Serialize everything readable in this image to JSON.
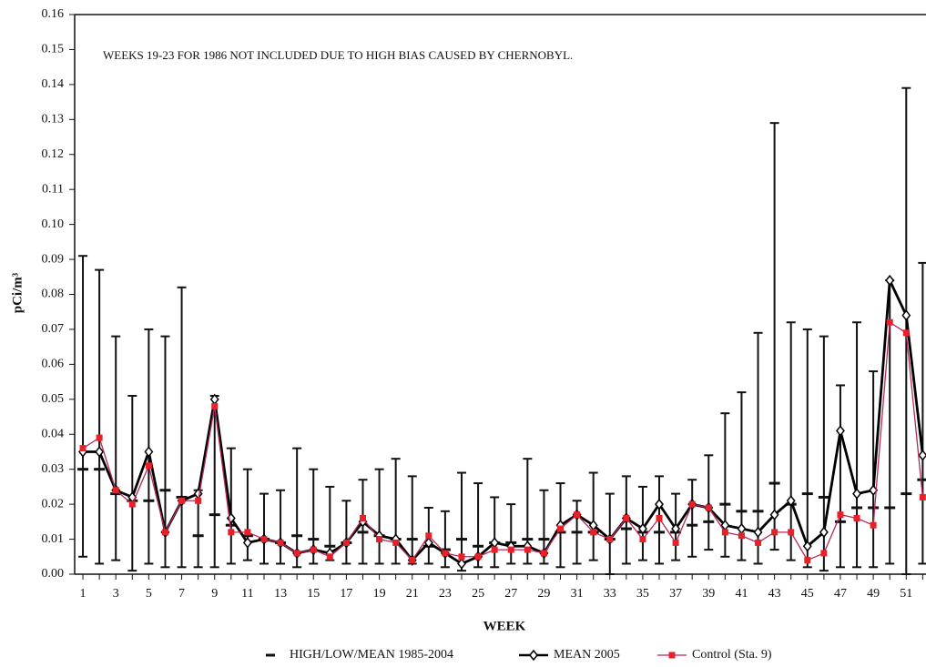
{
  "chart_data": {
    "type": "line",
    "annotation": "WEEKS 19-23 FOR 1986 NOT INCLUDED DUE TO HIGH BIAS CAUSED BY CHERNOBYL.",
    "x_label": "WEEK",
    "y_label": "pCi/m³",
    "x": [
      1,
      2,
      3,
      4,
      5,
      6,
      7,
      8,
      9,
      10,
      11,
      12,
      13,
      14,
      15,
      16,
      17,
      18,
      19,
      20,
      21,
      22,
      23,
      24,
      25,
      26,
      27,
      28,
      29,
      30,
      31,
      32,
      33,
      34,
      35,
      36,
      37,
      38,
      39,
      40,
      41,
      42,
      43,
      44,
      45,
      46,
      47,
      48,
      49,
      50,
      51,
      52
    ],
    "xlim": [
      0.5,
      52.2
    ],
    "xticks": [
      1,
      3,
      5,
      7,
      9,
      11,
      13,
      15,
      17,
      19,
      21,
      23,
      25,
      27,
      29,
      31,
      33,
      35,
      37,
      39,
      41,
      43,
      45,
      47,
      49,
      51
    ],
    "ylim": [
      0,
      0.16
    ],
    "yticks": [
      {
        "value": 0,
        "label": "0.00"
      },
      {
        "value": 0.01,
        "label": "0.01"
      },
      {
        "value": 0.02,
        "label": "0.02"
      },
      {
        "value": 0.03,
        "label": "0.03"
      },
      {
        "value": 0.04,
        "label": "0.04"
      },
      {
        "value": 0.05,
        "label": "0.05"
      },
      {
        "value": 0.06,
        "label": "0.06"
      },
      {
        "value": 0.07,
        "label": "0.07"
      },
      {
        "value": 0.08,
        "label": "0.08"
      },
      {
        "value": 0.09,
        "label": "0.09"
      },
      {
        "value": 0.1,
        "label": "0.10"
      },
      {
        "value": 0.11,
        "label": "0.11"
      },
      {
        "value": 0.12,
        "label": "0.12"
      },
      {
        "value": 0.13,
        "label": "0.13"
      },
      {
        "value": 0.14,
        "label": "0.14"
      },
      {
        "value": 0.15,
        "label": "0.15"
      },
      {
        "value": 0.16,
        "label": "0.16"
      }
    ],
    "series": [
      {
        "name": "HIGH/LOW/MEAN 1985-2004",
        "color": "#111111",
        "style": "errorbar",
        "values": [
          0.03,
          0.03,
          0.023,
          0.021,
          0.021,
          0.024,
          0.022,
          0.011,
          0.017,
          0.014,
          0.011,
          0.01,
          0.009,
          0.011,
          0.01,
          0.008,
          0.009,
          0.012,
          0.011,
          0.01,
          0.01,
          0.008,
          0.007,
          0.01,
          0.008,
          0.009,
          0.009,
          0.01,
          0.01,
          0.012,
          0.012,
          0.012,
          0.01,
          0.013,
          0.012,
          0.012,
          0.012,
          0.014,
          0.015,
          0.02,
          0.018,
          0.018,
          0.026,
          0.02,
          0.023,
          0.022,
          0.015,
          0.019,
          0.019,
          0.019,
          0.023,
          0.027
        ],
        "high": [
          0.091,
          0.087,
          0.068,
          0.051,
          0.07,
          0.068,
          0.082,
          0.024,
          0.051,
          0.036,
          0.03,
          0.023,
          0.024,
          0.036,
          0.03,
          0.025,
          0.021,
          0.027,
          0.03,
          0.033,
          0.028,
          0.019,
          0.018,
          0.029,
          0.026,
          0.022,
          0.02,
          0.033,
          0.024,
          0.026,
          0.021,
          0.029,
          0.023,
          0.028,
          0.025,
          0.028,
          0.023,
          0.027,
          0.034,
          0.046,
          0.052,
          0.069,
          0.129,
          0.072,
          0.07,
          0.068,
          0.054,
          0.072,
          0.058,
          0.084,
          0.139,
          0.089
        ],
        "low": [
          0.005,
          0.003,
          0.004,
          0.001,
          0.003,
          0.002,
          0.002,
          0.002,
          0.002,
          0.003,
          0.004,
          0.003,
          0.003,
          0.002,
          0.003,
          0.004,
          0.003,
          0.003,
          0.003,
          0.003,
          0.003,
          0.003,
          0.002,
          0.001,
          0.002,
          0.002,
          0.003,
          0.003,
          0.003,
          0.002,
          0.003,
          0.004,
          0.0,
          0.003,
          0.004,
          0.003,
          0.004,
          0.005,
          0.007,
          0.005,
          0.004,
          0.003,
          0.007,
          0.004,
          0.002,
          0.001,
          0.002,
          0.002,
          0.002,
          0.003,
          0.0,
          0.003
        ]
      },
      {
        "name": "MEAN 2005",
        "color": "#000000",
        "style": "diamond",
        "values": [
          0.035,
          0.035,
          0.024,
          0.022,
          0.035,
          0.012,
          0.021,
          0.023,
          0.05,
          0.016,
          0.009,
          0.01,
          0.009,
          0.006,
          0.007,
          0.006,
          0.009,
          0.015,
          0.011,
          0.01,
          0.004,
          0.009,
          0.006,
          0.003,
          0.005,
          0.009,
          0.008,
          0.008,
          0.006,
          0.014,
          0.017,
          0.014,
          0.01,
          0.016,
          0.013,
          0.02,
          0.013,
          0.02,
          0.019,
          0.014,
          0.013,
          0.012,
          0.017,
          0.021,
          0.008,
          0.012,
          0.041,
          0.023,
          0.024,
          0.084,
          0.074,
          0.034
        ]
      },
      {
        "name": "Control (Sta. 9)",
        "color": "#e8202a",
        "style": "square",
        "values": [
          0.036,
          0.039,
          0.024,
          0.02,
          0.031,
          0.012,
          0.021,
          0.021,
          0.048,
          0.012,
          0.012,
          0.01,
          0.009,
          0.006,
          0.007,
          0.005,
          0.009,
          0.016,
          0.01,
          0.009,
          0.004,
          0.011,
          0.006,
          0.005,
          0.005,
          0.007,
          0.007,
          0.007,
          0.006,
          0.013,
          0.017,
          0.012,
          0.01,
          0.016,
          0.01,
          0.016,
          0.009,
          0.02,
          0.019,
          0.012,
          0.011,
          0.009,
          0.012,
          0.012,
          0.004,
          0.006,
          0.017,
          0.016,
          0.014,
          0.072,
          0.069,
          0.022
        ]
      }
    ]
  }
}
